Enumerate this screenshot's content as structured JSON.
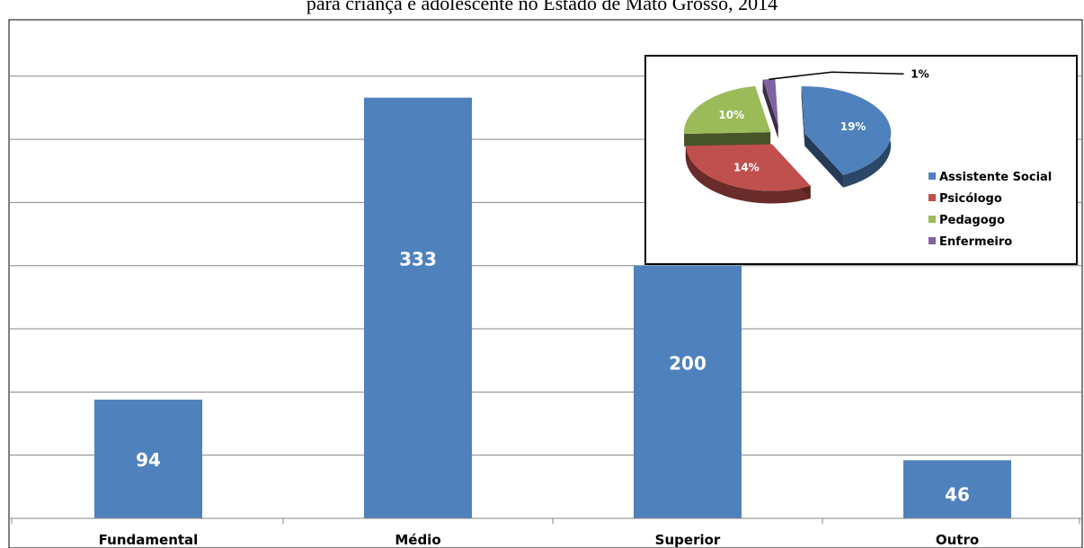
{
  "chart_data": [
    {
      "type": "bar",
      "title": "para criança e adolescente no Estado de Mato Grosso, 2014",
      "categories": [
        "Fundamental",
        "Médio",
        "Superior",
        "Outro"
      ],
      "values": [
        94,
        333,
        200,
        46
      ],
      "ylim": [
        0,
        375
      ],
      "grid": true,
      "colors": {
        "bar": "#4f81bd"
      }
    },
    {
      "type": "pie",
      "labels": [
        "Assistente Social",
        "Psicólogo",
        "Pedagogo",
        "Enfermeiro"
      ],
      "values": [
        19,
        14,
        10,
        1
      ],
      "value_labels": [
        "19%",
        "14%",
        "10%",
        "1%"
      ],
      "colors": [
        "#4f81bd",
        "#c0504d",
        "#9bbb59",
        "#8064a2"
      ],
      "legend_position": "bottom-right"
    }
  ]
}
